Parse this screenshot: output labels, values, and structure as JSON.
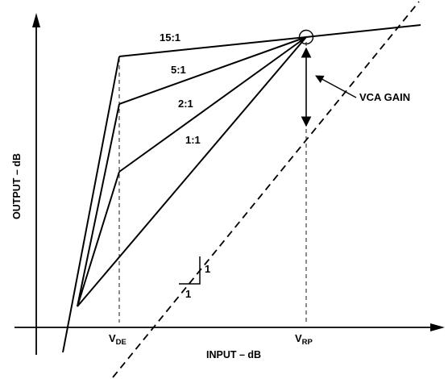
{
  "axes": {
    "y_title": "OUTPUT – dB",
    "x_title": "INPUT – dB"
  },
  "ticks": {
    "vde_main": "V",
    "vde_sub": "DE",
    "vrp_main": "V",
    "vrp_sub": "RP"
  },
  "ratios": {
    "r15": "15:1",
    "r5": "5:1",
    "r2": "2:1",
    "r1": "1:1"
  },
  "annotation": {
    "vca_gain": "VCA GAIN"
  },
  "slope": {
    "rise": "1",
    "run": "1"
  },
  "colors": {
    "line": "#000000",
    "background": "#ffffff"
  }
}
